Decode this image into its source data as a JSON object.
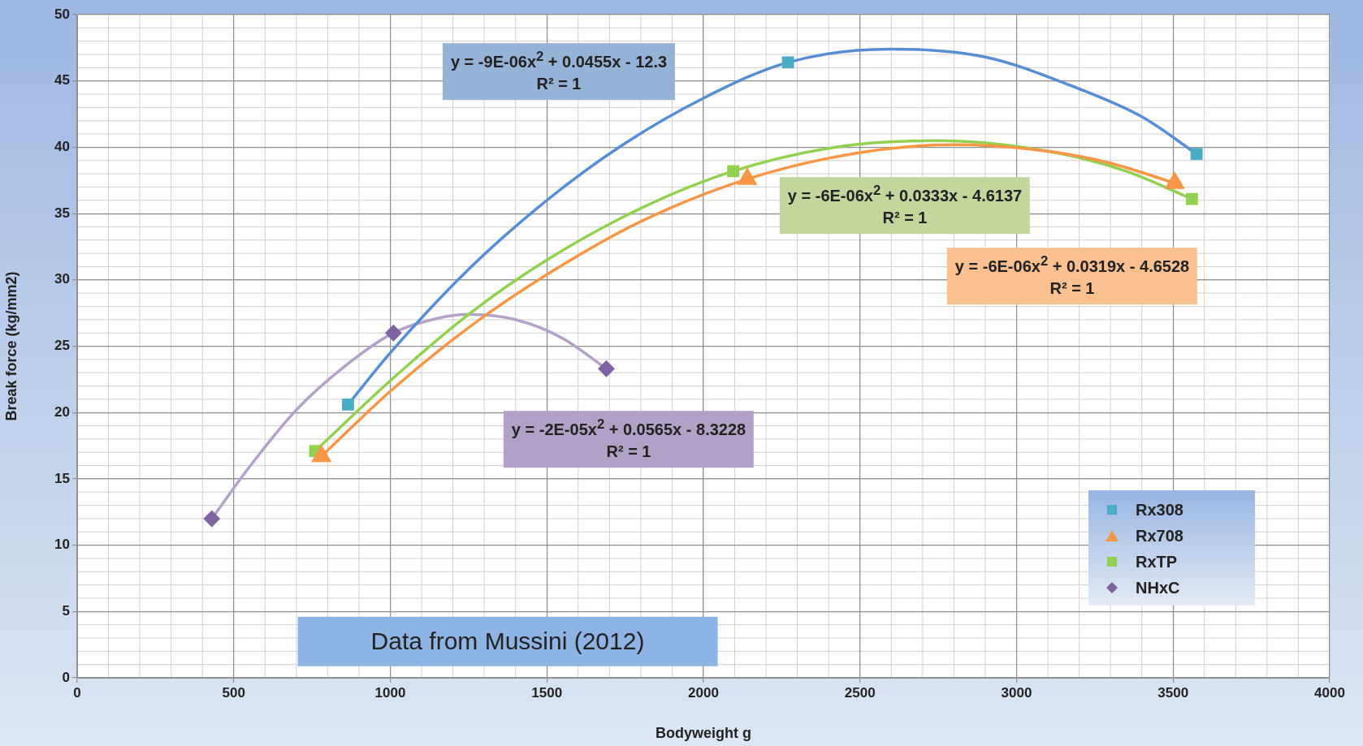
{
  "chart_data": {
    "type": "scatter",
    "xlabel": "Bodyweight g",
    "ylabel": "Break force (kg/mm2)",
    "xlim": [
      0,
      4000
    ],
    "xticks": [
      0,
      500,
      1000,
      1500,
      2000,
      2500,
      3000,
      3500,
      4000
    ],
    "ylim": [
      0,
      50
    ],
    "yticks": [
      0,
      5,
      10,
      15,
      20,
      25,
      30,
      35,
      40,
      45,
      50
    ],
    "grid": true,
    "legend": "bottom right",
    "series": [
      {
        "name": "Rx308",
        "type": "scatter",
        "marker": "square",
        "color": "#4bacc6",
        "x": [
          865,
          2270,
          3575
        ],
        "values": [
          20.6,
          46.4,
          39.5
        ]
      },
      {
        "name": "Rx708",
        "type": "scatter",
        "marker": "triangle",
        "color": "#f79646",
        "x": [
          780,
          2140,
          3505
        ],
        "values": [
          16.7,
          37.6,
          37.3
        ]
      },
      {
        "name": "RxTP",
        "type": "scatter",
        "marker": "square",
        "color": "#92d050",
        "x": [
          760,
          2095,
          3560
        ],
        "values": [
          17.1,
          38.2,
          36.1
        ]
      },
      {
        "name": "NHxC",
        "type": "scatter",
        "marker": "diamond",
        "color": "#8064a2",
        "x": [
          430,
          1010,
          1690
        ],
        "values": [
          12.0,
          26.0,
          23.3
        ]
      },
      {
        "type": "line",
        "marker": "none",
        "color": "#558ed5",
        "x": [
          865,
          1000,
          1250,
          1500,
          1750,
          2000,
          2270,
          2600,
          2900,
          3200,
          3400,
          3575
        ],
        "values": [
          20.6,
          24.5,
          30.8,
          36.0,
          40.3,
          43.7,
          46.4,
          47.4,
          46.8,
          44.4,
          42.3,
          39.5
        ]
      },
      {
        "type": "line",
        "marker": "none",
        "color": "#f79646",
        "x": [
          780,
          1000,
          1250,
          1500,
          1800,
          2140,
          2500,
          2800,
          3100,
          3300,
          3505
        ],
        "values": [
          16.7,
          21.6,
          26.4,
          30.4,
          34.4,
          37.6,
          39.6,
          40.2,
          39.7,
          38.8,
          37.3
        ]
      },
      {
        "type": "line",
        "marker": "none",
        "color": "#92d050",
        "x": [
          760,
          1000,
          1250,
          1500,
          1800,
          2095,
          2450,
          2750,
          3100,
          3350,
          3560
        ],
        "values": [
          17.1,
          22.4,
          27.4,
          31.5,
          35.4,
          38.2,
          40.1,
          40.5,
          39.7,
          38.2,
          36.1
        ]
      },
      {
        "type": "line",
        "marker": "none",
        "color": "#b3a2c7",
        "x": [
          430,
          550,
          700,
          850,
          1010,
          1150,
          1250,
          1400,
          1550,
          1690
        ],
        "values": [
          12.0,
          15.9,
          20.2,
          23.4,
          26.0,
          27.1,
          27.4,
          27.0,
          25.6,
          23.3
        ]
      }
    ],
    "annotations": [
      "y = -9E-06x$^{2}$ + 0.0455x - 12.3\nR² = 1",
      "y = -6E-06x$^{2}$ + 0.0333x - 4.6137\nR² = 1",
      "y = -6E-06x$^{2}$ + 0.0319x - 4.6528\nR² = 1",
      "y = -2E-05x$^{2}$ + 0.0565x - 8.3228\nR² = 1",
      "Data from Mussini (2012)"
    ]
  }
}
